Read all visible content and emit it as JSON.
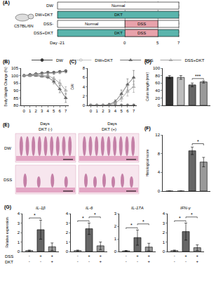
{
  "schematic": {
    "label": "(A)",
    "strain": "C57BL/6N",
    "days": [
      {
        "value": -21,
        "label": "Day -21"
      },
      0,
      5,
      7
    ],
    "rows": [
      {
        "name": "DW",
        "segments": [
          {
            "from": -21,
            "to": 7,
            "text": "Normal",
            "color": "#ffffff"
          }
        ]
      },
      {
        "name": "DW+DKT",
        "segments": [
          {
            "from": -21,
            "to": 7,
            "text": "DKT",
            "color": "#5ab4ac"
          }
        ]
      },
      {
        "name": "DSS-",
        "segments": [
          {
            "from": -21,
            "to": 0,
            "text": "Normal",
            "color": "#ffffff"
          },
          {
            "from": 0,
            "to": 5,
            "text": "DSS",
            "color": "#e8a2ab"
          },
          {
            "from": 5,
            "to": 7,
            "color": "#ffffff"
          }
        ]
      },
      {
        "name": "DSS+DKT",
        "segments": [
          {
            "from": -21,
            "to": 7,
            "text": "DKT",
            "color": "#5ab4ac"
          },
          {
            "from": 0,
            "to": 5,
            "text": "DSS",
            "color": "#e8a2ab"
          }
        ]
      }
    ]
  },
  "images": {
    "label": "(E)",
    "columns": [
      "DKT (-)",
      "DKT (+)"
    ],
    "rows": [
      "DW",
      "DSS"
    ]
  },
  "chart_data": [
    {
      "type": "line",
      "label": "(B)",
      "x_title": "Days",
      "y_title": "Body Weight Change (%)",
      "x": [
        0,
        1,
        2,
        3,
        4,
        5,
        6,
        7
      ],
      "xlim": [
        -0.5,
        7.5
      ],
      "xticks": [
        0,
        1,
        2,
        3,
        4,
        5,
        6,
        7
      ],
      "ylim": [
        80,
        105
      ],
      "yticks": [
        80,
        85,
        90,
        95,
        100,
        105
      ],
      "legend": "top",
      "series": [
        {
          "name": "DW",
          "color": "#333333",
          "marker": "circle",
          "values": [
            100,
            100.5,
            101,
            101.5,
            102,
            102,
            102.5,
            103
          ]
        },
        {
          "name": "DW+DKT",
          "color": "#bdbdbd",
          "marker": "circle-open",
          "values": [
            100,
            100,
            100.5,
            101,
            101.5,
            101.5,
            102,
            102.5
          ]
        },
        {
          "name": "DSS",
          "color": "#666666",
          "marker": "triangle-up",
          "values": [
            100,
            100,
            100,
            99.5,
            99,
            96,
            91,
            85
          ],
          "errors": [
            0,
            0,
            0.5,
            0.5,
            1,
            1.5,
            2.5,
            3
          ]
        },
        {
          "name": "DSS+DKT",
          "color": "#999999",
          "marker": "triangle-up-open",
          "values": [
            100,
            100,
            100.5,
            100,
            100,
            98,
            95,
            90
          ],
          "errors": [
            0,
            0,
            0.5,
            0.5,
            0.8,
            1.2,
            2,
            2.5
          ]
        }
      ]
    },
    {
      "type": "line",
      "label": "(C)",
      "x_title": "Days",
      "y_title": "DAI",
      "x": [
        0,
        1,
        2,
        3,
        4,
        5,
        6,
        7
      ],
      "xlim": [
        -0.5,
        7.5
      ],
      "xticks": [
        0,
        1,
        2,
        3,
        4,
        5,
        6,
        7
      ],
      "ylim": [
        0,
        8
      ],
      "yticks": [
        0,
        2,
        4,
        6,
        8
      ],
      "series": [
        {
          "name": "DW",
          "color": "#333333",
          "marker": "circle",
          "values": [
            0,
            0,
            0,
            0,
            0,
            0,
            0,
            0
          ]
        },
        {
          "name": "DW+DKT",
          "color": "#bdbdbd",
          "marker": "circle-open",
          "values": [
            0,
            0,
            0,
            0,
            0,
            0,
            0,
            0
          ]
        },
        {
          "name": "DSS",
          "color": "#666666",
          "marker": "triangle-up",
          "values": [
            0,
            0,
            0,
            0.2,
            0.8,
            2.5,
            4.5,
            6
          ],
          "errors": [
            0,
            0,
            0,
            0.2,
            0.4,
            0.8,
            1.2,
            1.5
          ]
        },
        {
          "name": "DSS+DKT",
          "color": "#999999",
          "marker": "triangle-up-open",
          "values": [
            0,
            0,
            0,
            0,
            0.5,
            1.5,
            3,
            4
          ],
          "errors": [
            0,
            0,
            0,
            0,
            0.3,
            0.6,
            1,
            1.2
          ]
        }
      ]
    },
    {
      "type": "bar",
      "label": "(D)",
      "y_title": "Colon length (mm)",
      "tick_labels": "y",
      "categories": [
        "DW",
        "DW+DKT",
        "DSS",
        "DSS+DKT"
      ],
      "values": [
        76,
        75,
        55,
        63
      ],
      "errors": [
        4,
        5,
        5,
        3
      ],
      "colors": [
        "#333333",
        "#bdbdbd",
        "#666666",
        "#999999"
      ],
      "ylim": [
        0,
        100
      ],
      "yticks": [
        0,
        20,
        40,
        60,
        80,
        100
      ],
      "significance": [
        {
          "pair": [
            2,
            3
          ],
          "label": "***"
        }
      ]
    },
    {
      "type": "bar",
      "label": "(F)",
      "y_title": "Histological score",
      "tick_labels": "y",
      "categories": [
        "DW",
        "DW+DKT",
        "DSS",
        "DSS+DKT"
      ],
      "values": [
        0,
        0,
        8.6,
        6.2
      ],
      "errors": [
        0,
        0,
        0.8,
        1.0
      ],
      "colors": [
        "#333333",
        "#bdbdbd",
        "#666666",
        "#999999"
      ],
      "ylim": [
        0,
        12
      ],
      "yticks": [
        0,
        4,
        8,
        12
      ],
      "significance": [
        {
          "pair": [
            2,
            3
          ],
          "label": "*"
        }
      ]
    },
    {
      "type": "bar",
      "label": "(G)",
      "title": "IL-1β",
      "y_title": "Relative expression",
      "row_labels": [
        "DSS",
        "DKT"
      ],
      "x_rows": [
        [
          "-",
          "+",
          "+"
        ],
        [
          "-",
          "-",
          "+"
        ]
      ],
      "values": [
        0.1,
        2.3,
        0.5
      ],
      "errors": [
        0.05,
        1.0,
        0.4
      ],
      "colors": [
        "#d9d9d9",
        "#666666",
        "#999999"
      ],
      "ylim": [
        0,
        4
      ],
      "yticks": [
        0,
        1,
        2,
        3,
        4
      ],
      "significance": [
        {
          "pair": [
            0,
            1
          ],
          "label": "*"
        }
      ]
    },
    {
      "type": "bar",
      "title": "IL-6",
      "x_rows": [
        [
          "-",
          "+",
          "+"
        ],
        [
          "-",
          "-",
          "+"
        ]
      ],
      "values": [
        0.1,
        2.4,
        0.6
      ],
      "errors": [
        0.05,
        0.6,
        0.4
      ],
      "colors": [
        "#d9d9d9",
        "#666666",
        "#999999"
      ],
      "ylim": [
        0,
        4
      ],
      "yticks": [
        0,
        1,
        2,
        3,
        4
      ],
      "significance": [
        {
          "pair": [
            0,
            1
          ],
          "label": "*"
        },
        {
          "pair": [
            1,
            2
          ],
          "label": "*"
        }
      ]
    },
    {
      "type": "bar",
      "title": "IL-17A",
      "x_rows": [
        [
          "-",
          "+",
          "+"
        ],
        [
          "-",
          "-",
          "+"
        ]
      ],
      "values": [
        0.05,
        1.1,
        0.35
      ],
      "errors": [
        0.03,
        0.6,
        0.3
      ],
      "colors": [
        "#d9d9d9",
        "#666666",
        "#999999"
      ],
      "ylim": [
        0,
        3
      ],
      "yticks": [
        0,
        1,
        2,
        3
      ],
      "significance": [
        {
          "pair": [
            0,
            1
          ],
          "label": "*"
        },
        {
          "pair": [
            1,
            2
          ],
          "label": "*"
        }
      ]
    },
    {
      "type": "bar",
      "title": "IFN-γ",
      "x_rows": [
        [
          "-",
          "+",
          "+"
        ],
        [
          "-",
          "-",
          "+"
        ]
      ],
      "values": [
        0.1,
        2.1,
        0.4
      ],
      "errors": [
        0.05,
        0.9,
        0.3
      ],
      "colors": [
        "#d9d9d9",
        "#666666",
        "#999999"
      ],
      "ylim": [
        0,
        4
      ],
      "yticks": [
        0,
        1,
        2,
        3,
        4
      ],
      "significance": [
        {
          "pair": [
            0,
            1
          ],
          "label": "*"
        },
        {
          "pair": [
            1,
            2
          ],
          "label": "*"
        }
      ]
    }
  ]
}
